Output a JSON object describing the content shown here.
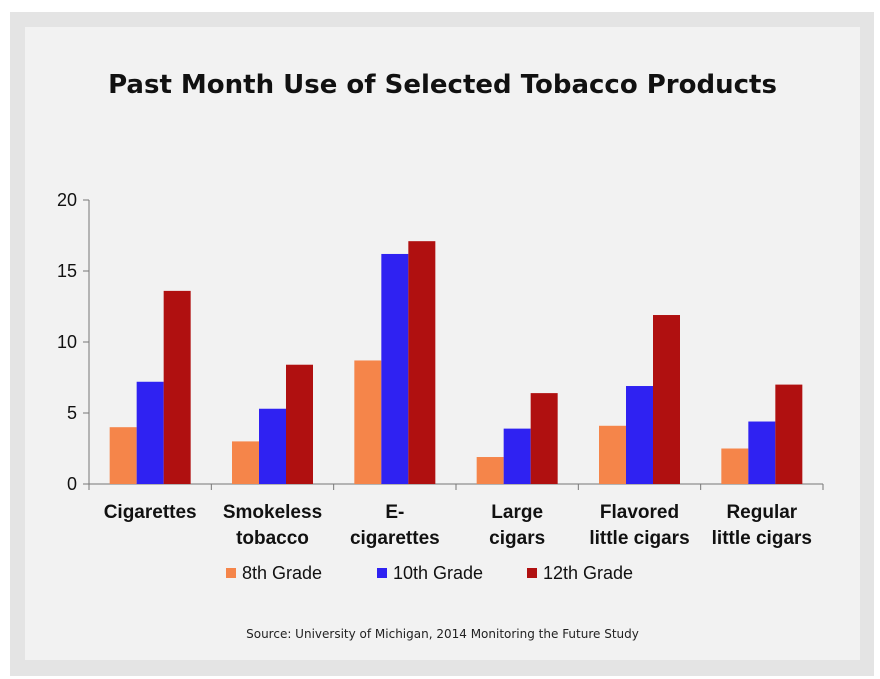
{
  "colors": {
    "8th": "#f5854a",
    "10th": "#2f22f2",
    "12th": "#b01010"
  },
  "chart_data": {
    "type": "bar",
    "title": "Past Month Use of Selected Tobacco Products",
    "source": "Source: University of Michigan, 2014 Monitoring the Future Study",
    "categories": [
      [
        "Cigarettes"
      ],
      [
        "Smokeless",
        "tobacco"
      ],
      [
        "E-",
        "cigarettes"
      ],
      [
        "Large",
        "cigars"
      ],
      [
        "Flavored",
        "little cigars"
      ],
      [
        "Regular",
        "little cigars"
      ]
    ],
    "series": [
      {
        "name": "8th Grade",
        "color": "#f5854a",
        "values": [
          4.0,
          3.0,
          8.7,
          1.9,
          4.1,
          2.5
        ]
      },
      {
        "name": "10th Grade",
        "color": "#2f22f2",
        "values": [
          7.2,
          5.3,
          16.2,
          3.9,
          6.9,
          4.4
        ]
      },
      {
        "name": "12th Grade",
        "color": "#b01010",
        "values": [
          13.6,
          8.4,
          17.1,
          6.4,
          11.9,
          7.0
        ]
      }
    ],
    "ylim": [
      0,
      20
    ],
    "yticks": [
      0,
      5,
      10,
      15,
      20
    ],
    "legend": "bottom"
  }
}
